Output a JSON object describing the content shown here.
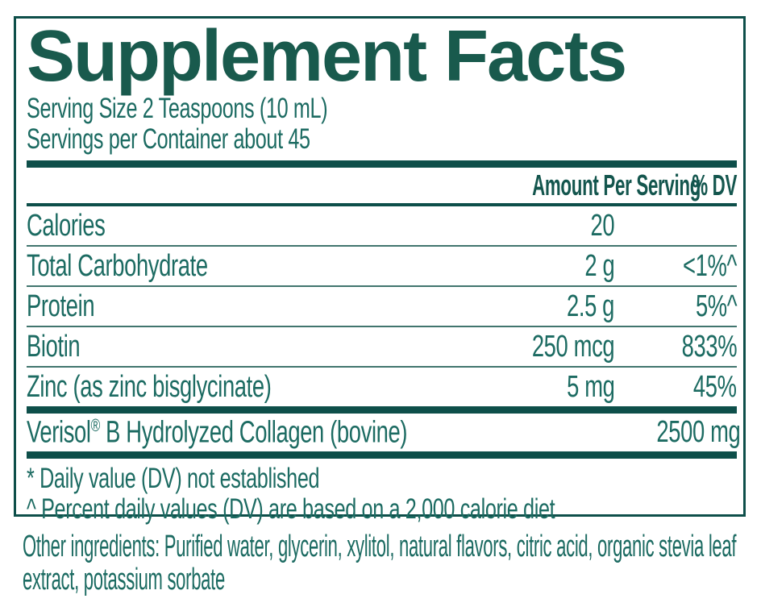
{
  "label": {
    "title": "Supplement Facts",
    "serving_size": "Serving Size 2 Teaspoons (10 mL)",
    "servings_per_container": "Servings per Container about 45",
    "columns": {
      "amount": "Amount Per Serving",
      "dv": "% DV"
    },
    "rows": [
      {
        "name": "Calories",
        "amount": "20",
        "dv": ""
      },
      {
        "name": "Total Carbohydrate",
        "amount": "2 g",
        "dv": "<1%^"
      },
      {
        "name": "Protein",
        "amount": "2.5 g",
        "dv": "5%^"
      },
      {
        "name": "Biotin",
        "amount": "250 mcg",
        "dv": "833%"
      },
      {
        "name": "Zinc (as zinc bisglycinate)",
        "amount": "5 mg",
        "dv": "45%"
      }
    ],
    "featured_row": {
      "brand": "Verisol",
      "reg_mark": "®",
      "name_rest": " B Hydrolyzed Collagen (bovine)",
      "amount": "2500 mg",
      "dv": "*"
    },
    "footnotes": [
      "* Daily value (DV) not established",
      "^ Percent daily values (DV) are based on a 2,000 calorie diet"
    ]
  },
  "other_ingredients": "Other ingredients: Purified water, glycerin, xylitol, natural flavors, citric acid, organic stevia leaf extract, potassium sorbate",
  "colors": {
    "dark_teal": "#0e4f4a",
    "title_teal": "#195a4d",
    "body_teal": "#1c6b62"
  }
}
